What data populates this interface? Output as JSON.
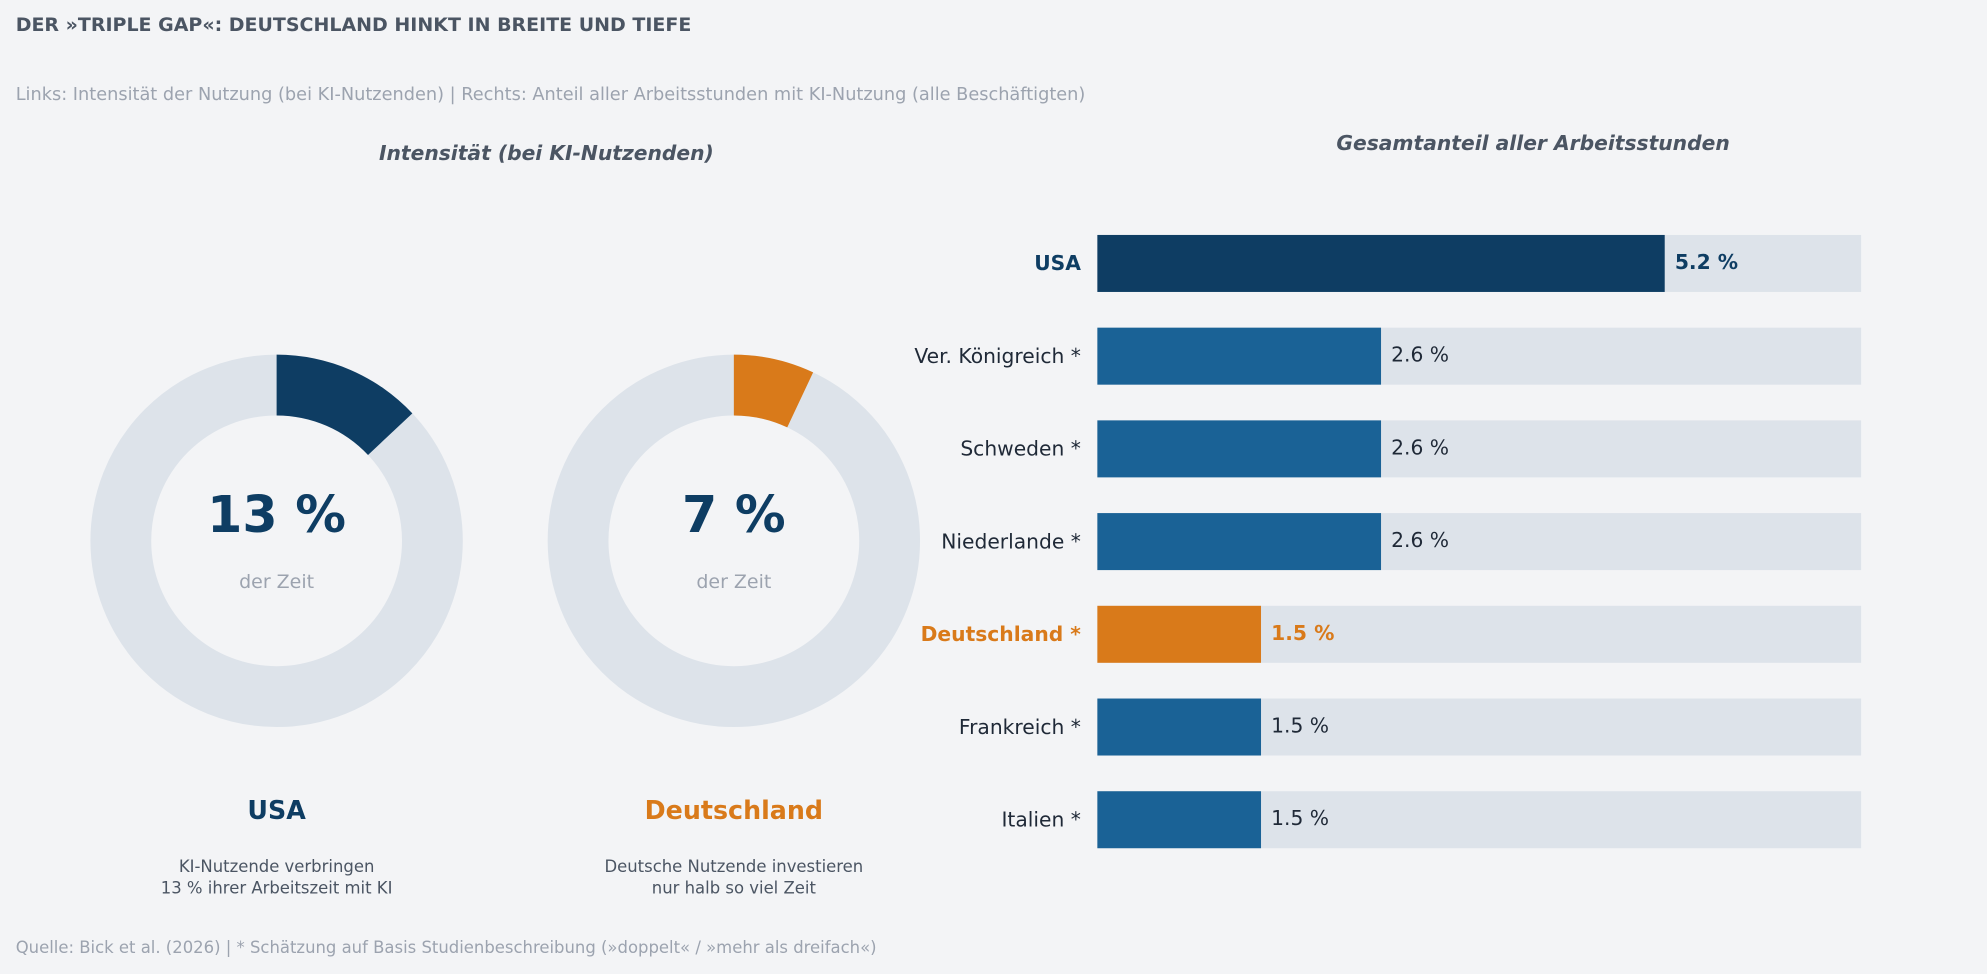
{
  "title": "DER »TRIPLE GAP«: DEUTSCHLAND HINKT IN BREITE UND TIEFE",
  "subtitle": "Links: Intensität der Nutzung (bei KI-Nutzenden) | Rechts: Anteil aller Arbeitsstunden mit KI-Nutzung (alle Beschäftigten)",
  "chart_data": [
    {
      "type": "donut",
      "title": "Intensität (bei KI-Nutzenden)",
      "categories": [
        "USA",
        "Deutschland"
      ],
      "values": [
        13,
        7
      ],
      "value_labels": [
        "13 %",
        "7 %"
      ],
      "colors": [
        "#0e3d63",
        "#d97a1a"
      ],
      "track_color": "#dde3ea",
      "ylim": [
        0,
        100
      ],
      "center_label": "der Zeit",
      "captions": [
        [
          "KI-Nutzende verbringen",
          "13 % ihrer Arbeitszeit mit KI"
        ],
        [
          "Deutsche Nutzende investieren",
          "nur halb so viel Zeit"
        ]
      ]
    },
    {
      "type": "hbar",
      "title": "Gesamtanteil aller Arbeitsstunden",
      "categories": [
        "USA",
        "Ver. Königreich *",
        "Schweden *",
        "Niederlande *",
        "Deutschland *",
        "Frankreich *",
        "Italien *"
      ],
      "values": [
        5.2,
        2.6,
        2.6,
        2.6,
        1.5,
        1.5,
        1.5
      ],
      "value_labels": [
        "5.2 %",
        "2.6 %",
        "2.6 %",
        "2.6 %",
        "1.5 %",
        "1.5 %",
        "1.5 %"
      ],
      "colors": [
        "#0e3d63",
        "#1a6296",
        "#1a6296",
        "#1a6296",
        "#d97a1a",
        "#1a6296",
        "#1a6296"
      ],
      "emphasis": [
        true,
        false,
        false,
        false,
        true,
        false,
        false
      ],
      "track_color": "#dde3ea",
      "xlim": [
        0,
        7
      ]
    }
  ],
  "source": "Quelle: Bick et al. (2026) | * Schätzung auf Basis Studienbeschreibung (»doppelt« / »mehr als dreifach«)"
}
